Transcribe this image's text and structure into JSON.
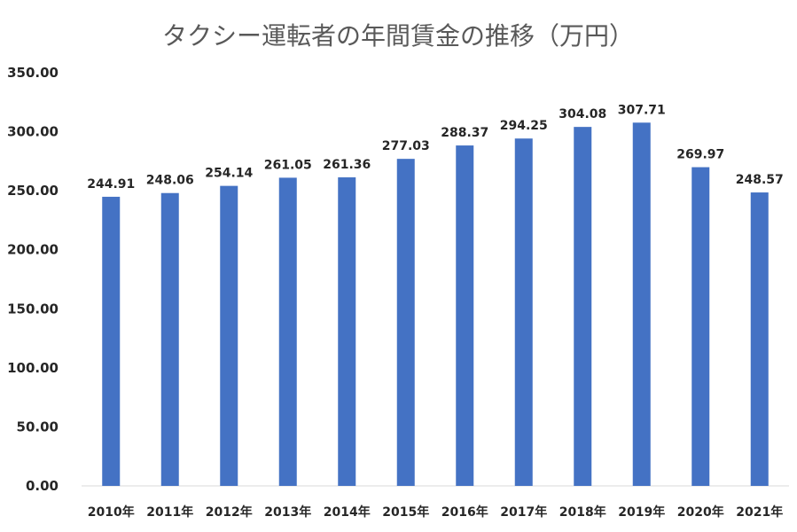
{
  "chart_data": {
    "type": "bar",
    "title": "タクシー運転者の年間賃金の推移（万円）",
    "categories": [
      "2010年",
      "2011年",
      "2012年",
      "2013年",
      "2014年",
      "2015年",
      "2016年",
      "2017年",
      "2018年",
      "2019年",
      "2020年",
      "2021年"
    ],
    "values": [
      244.91,
      248.06,
      254.14,
      261.05,
      261.36,
      277.03,
      288.37,
      294.25,
      304.08,
      307.71,
      269.97,
      248.57
    ],
    "value_labels": [
      "244.91",
      "248.06",
      "254.14",
      "261.05",
      "261.36",
      "277.03",
      "288.37",
      "294.25",
      "304.08",
      "307.71",
      "269.97",
      "248.57"
    ],
    "ylim": [
      0,
      350
    ],
    "y_ticks": [
      "0.00",
      "50.00",
      "100.00",
      "150.00",
      "200.00",
      "250.00",
      "300.00",
      "350.00"
    ],
    "grid": false,
    "legend": "none",
    "bar_color": "#4472c4"
  }
}
